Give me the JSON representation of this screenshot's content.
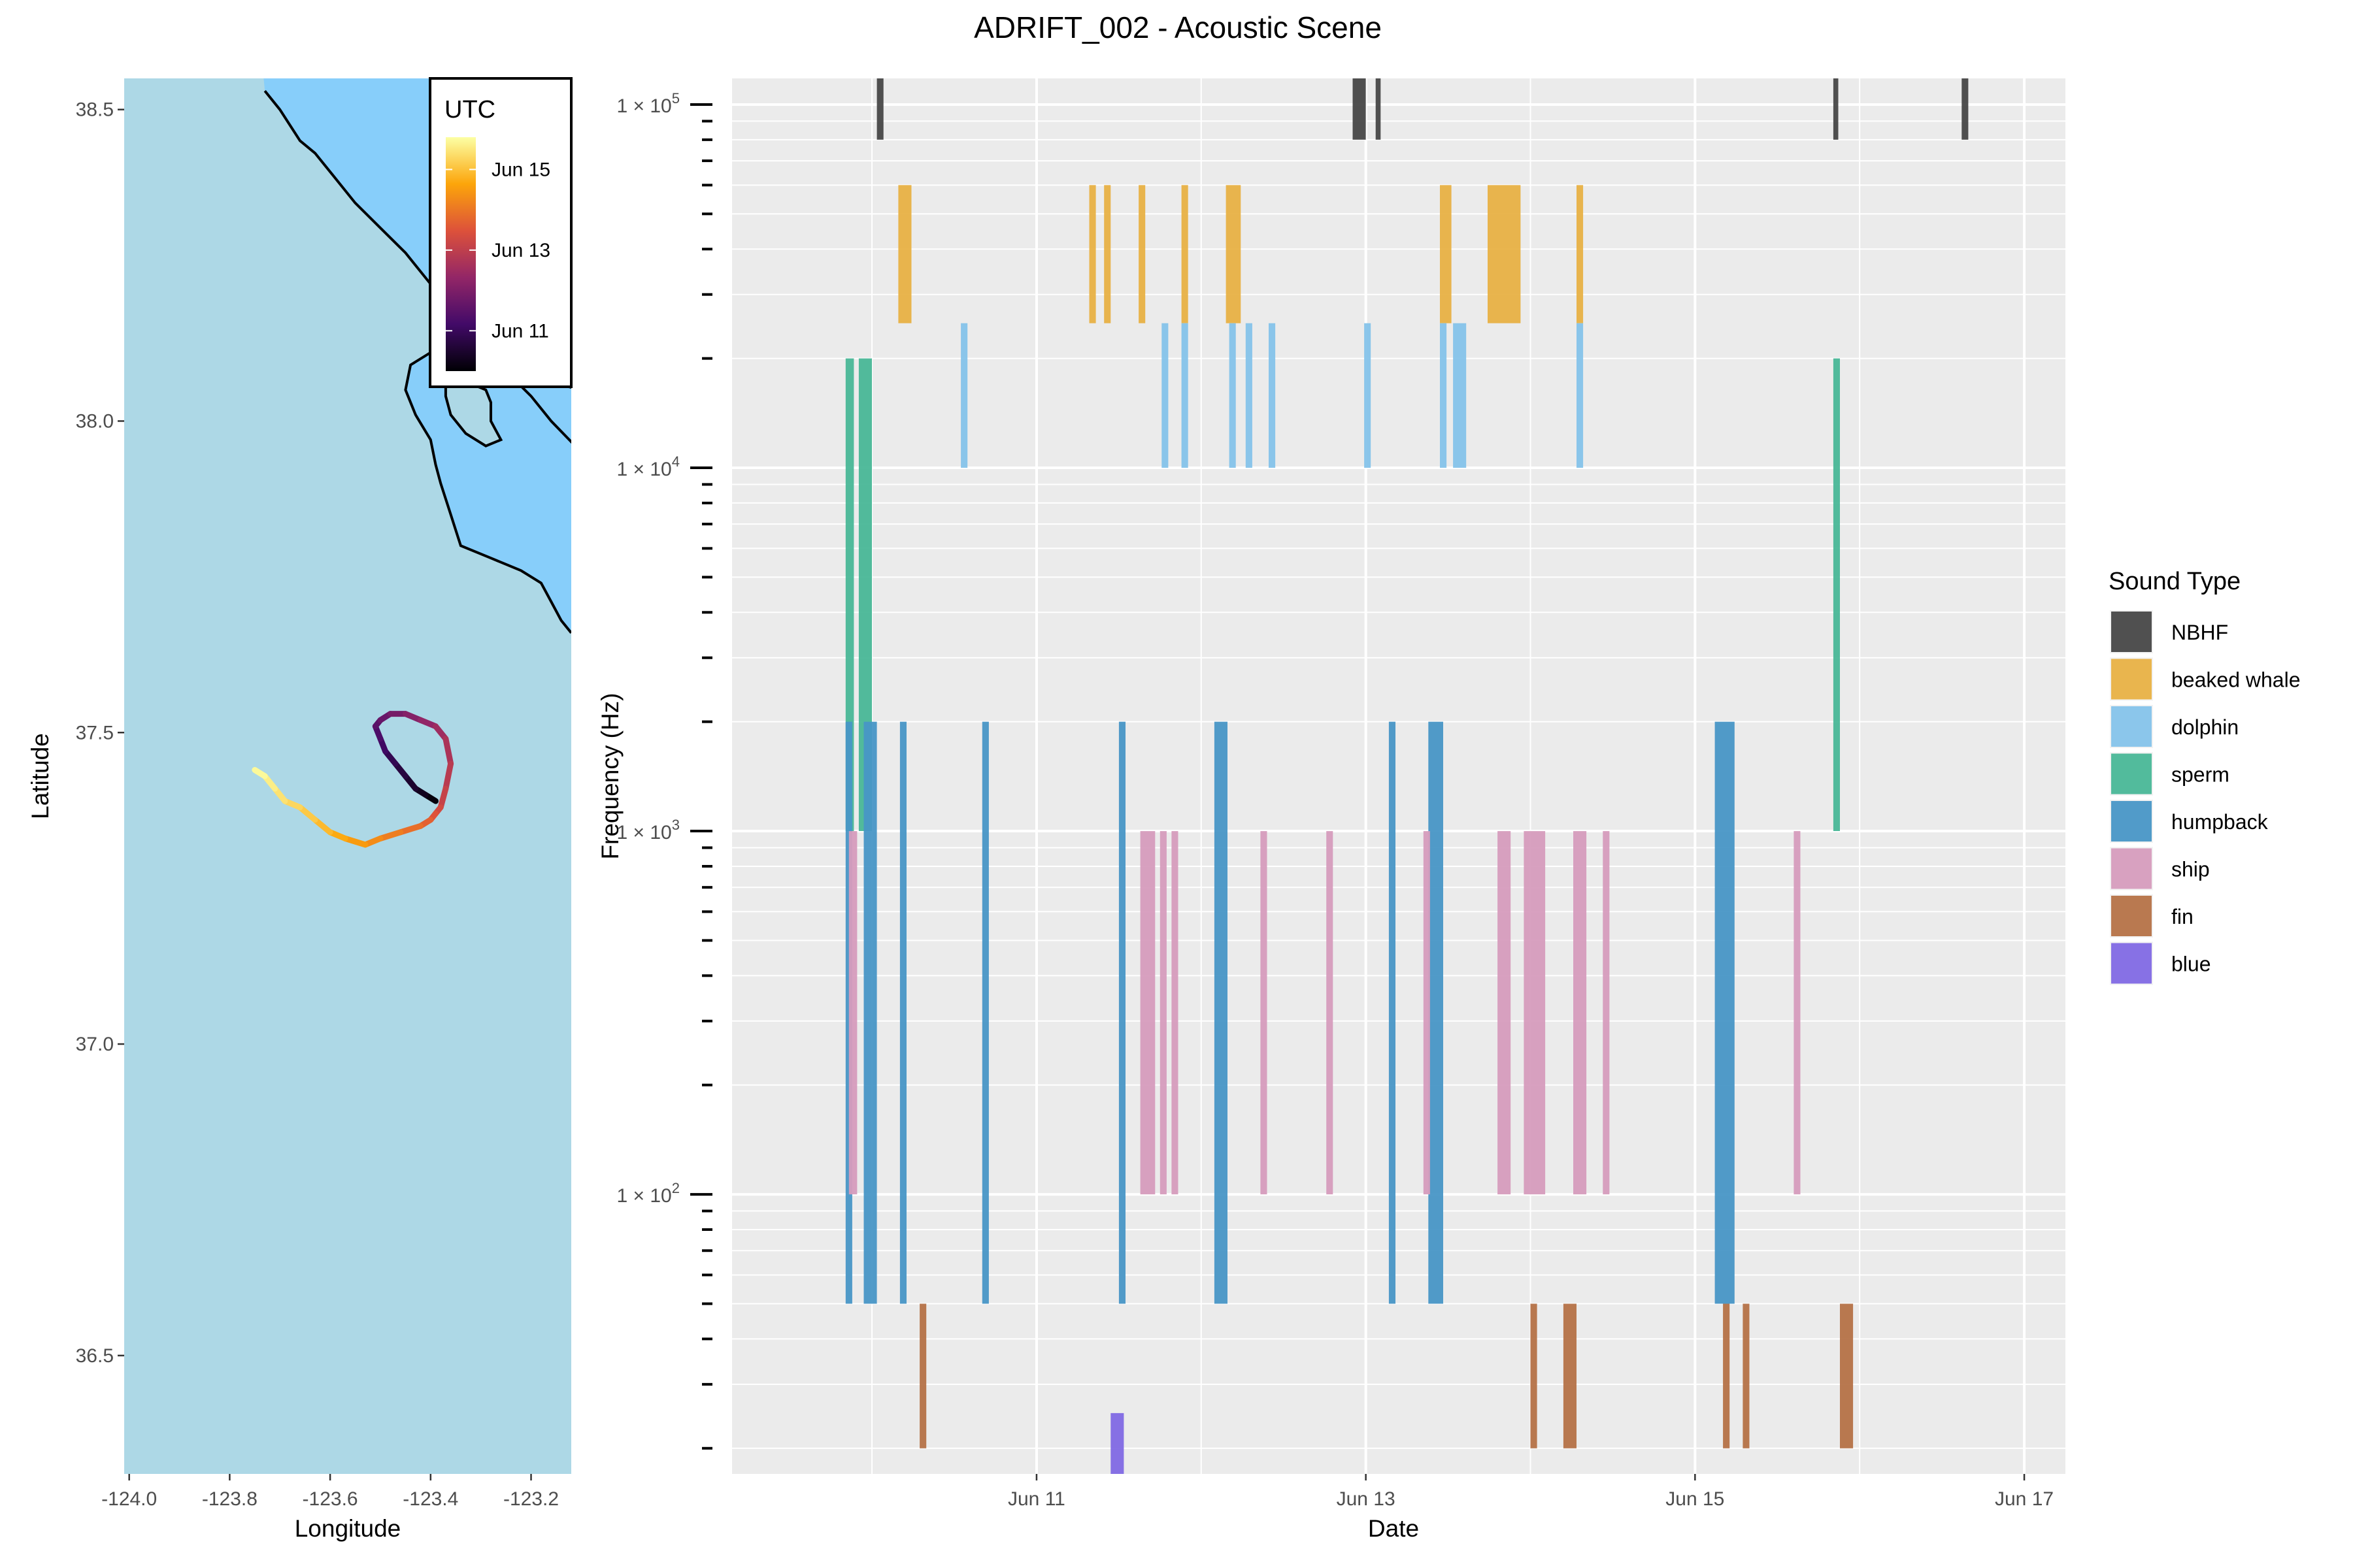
{
  "title": "ADRIFT_002 - Acoustic Scene",
  "chart_data": [
    {
      "type": "line",
      "panel": "map",
      "xlabel": "Longitude",
      "ylabel": "Latitude",
      "xlim": [
        -124.01,
        -123.12
      ],
      "ylim": [
        36.31,
        38.55
      ],
      "xticks": [
        -124.0,
        -123.8,
        -123.6,
        -123.4,
        -123.2
      ],
      "xtick_labels": [
        "-124.0",
        "-123.8",
        "-123.6",
        "-123.4",
        "-123.2"
      ],
      "yticks": [
        36.5,
        37.0,
        37.5,
        38.0,
        38.5
      ],
      "ytick_labels": [
        "36.5",
        "37.0",
        "37.5",
        "38.0",
        "38.5"
      ],
      "colors": {
        "ocean": "#add8e6",
        "land": "#87cefa",
        "coast": "#000000"
      },
      "colorbar": {
        "title": "UTC",
        "range": [
          10.0,
          15.8
        ],
        "ticks": [
          11,
          13,
          15
        ],
        "tick_labels": [
          "Jun 11",
          "Jun 13",
          "Jun 15"
        ],
        "palette": [
          "#000004",
          "#420a68",
          "#932667",
          "#dd513a",
          "#fca50a",
          "#fcffa4"
        ]
      },
      "coastline": {
        "mainland": [
          [
            -123.73,
            38.53
          ],
          [
            -123.7,
            38.5
          ],
          [
            -123.66,
            38.45
          ],
          [
            -123.63,
            38.43
          ],
          [
            -123.6,
            38.4
          ],
          [
            -123.55,
            38.35
          ],
          [
            -123.5,
            38.31
          ],
          [
            -123.45,
            38.27
          ],
          [
            -123.4,
            38.22
          ],
          [
            -123.35,
            38.18
          ],
          [
            -123.3,
            38.12
          ],
          [
            -123.25,
            38.08
          ],
          [
            -123.2,
            38.04
          ],
          [
            -123.16,
            38.0
          ],
          [
            -123.1,
            37.95
          ],
          [
            -123.05,
            37.88
          ]
        ],
        "bay_loop": [
          [
            -123.05,
            38.06
          ],
          [
            -123.1,
            38.05
          ],
          [
            -123.15,
            38.06
          ],
          [
            -123.2,
            38.08
          ],
          [
            -123.26,
            38.1
          ],
          [
            -123.33,
            38.11
          ],
          [
            -123.4,
            38.11
          ],
          [
            -123.44,
            38.09
          ],
          [
            -123.45,
            38.05
          ],
          [
            -123.43,
            38.01
          ],
          [
            -123.4,
            37.97
          ],
          [
            -123.39,
            37.93
          ],
          [
            -123.38,
            37.9
          ],
          [
            -123.36,
            37.85
          ],
          [
            -123.34,
            37.8
          ],
          [
            -123.28,
            37.78
          ],
          [
            -123.22,
            37.76
          ],
          [
            -123.18,
            37.74
          ],
          [
            -123.16,
            37.71
          ],
          [
            -123.14,
            37.68
          ],
          [
            -123.12,
            37.66
          ]
        ],
        "lagoon": [
          [
            -123.37,
            38.06
          ],
          [
            -123.32,
            38.06
          ],
          [
            -123.29,
            38.05
          ],
          [
            -123.28,
            38.03
          ],
          [
            -123.28,
            38.0
          ],
          [
            -123.26,
            37.97
          ],
          [
            -123.29,
            37.96
          ],
          [
            -123.33,
            37.98
          ],
          [
            -123.36,
            38.01
          ],
          [
            -123.37,
            38.04
          ],
          [
            -123.37,
            38.06
          ]
        ]
      },
      "track": {
        "lon": [
          -123.39,
          -123.41,
          -123.43,
          -123.45,
          -123.47,
          -123.49,
          -123.5,
          -123.51,
          -123.5,
          -123.48,
          -123.45,
          -123.42,
          -123.39,
          -123.37,
          -123.36,
          -123.37,
          -123.38,
          -123.39,
          -123.4,
          -123.42,
          -123.46,
          -123.5,
          -123.53,
          -123.57,
          -123.6,
          -123.63,
          -123.66,
          -123.69,
          -123.71,
          -123.73,
          -123.75
        ],
        "lat": [
          37.39,
          37.4,
          37.41,
          37.43,
          37.45,
          37.47,
          37.49,
          37.51,
          37.52,
          37.53,
          37.53,
          37.52,
          37.51,
          37.49,
          37.45,
          37.41,
          37.38,
          37.37,
          37.36,
          37.35,
          37.34,
          37.33,
          37.32,
          37.33,
          37.34,
          37.36,
          37.38,
          37.39,
          37.41,
          37.43,
          37.44
        ],
        "utc_day": [
          10.0,
          10.2,
          10.4,
          10.6,
          10.8,
          11.0,
          11.2,
          11.4,
          11.6,
          11.8,
          12.0,
          12.2,
          12.4,
          12.6,
          12.8,
          13.0,
          13.2,
          13.4,
          13.6,
          13.8,
          14.0,
          14.2,
          14.4,
          14.6,
          14.8,
          15.0,
          15.2,
          15.35,
          15.5,
          15.65,
          15.8
        ]
      }
    },
    {
      "type": "bar",
      "panel": "acoustic-scene",
      "xlabel": "Date",
      "ylabel": "Frequency (Hz)",
      "y_scale": "log",
      "xlim": [
        9.15,
        17.25
      ],
      "ylim": [
        17,
        118000
      ],
      "xticks": [
        11,
        13,
        15,
        17
      ],
      "xtick_labels": [
        "Jun 11",
        "Jun 13",
        "Jun 15",
        "Jun 17"
      ],
      "yticks": [
        100,
        1000,
        10000,
        100000
      ],
      "ytick_labels": [
        "1 × 10",
        "1 × 10",
        "1 × 10",
        "1 × 10"
      ],
      "ytick_exponents": [
        "2",
        "3",
        "4",
        "5"
      ],
      "legend": {
        "title": "Sound Type",
        "position": "right"
      },
      "series": [
        {
          "name": "NBHF",
          "color": "#474747",
          "bands": [
            {
              "f_lo": 80000,
              "f_hi": 130000,
              "intervals": [
                [
                  10.03,
                  10.07
                ],
                [
                  12.92,
                  13.0
                ],
                [
                  13.06,
                  13.09
                ],
                [
                  15.84,
                  15.87
                ],
                [
                  16.62,
                  16.66
                ]
              ]
            }
          ]
        },
        {
          "name": "beaked whale",
          "color": "#e8b144",
          "bands": [
            {
              "f_lo": 25000,
              "f_hi": 60000,
              "intervals": [
                [
                  10.16,
                  10.24
                ],
                [
                  11.32,
                  11.36
                ],
                [
                  11.41,
                  11.45
                ],
                [
                  11.62,
                  11.66
                ],
                [
                  11.88,
                  11.92
                ],
                [
                  12.15,
                  12.24
                ],
                [
                  13.45,
                  13.52
                ],
                [
                  13.74,
                  13.94
                ],
                [
                  14.28,
                  14.32
                ]
              ]
            }
          ]
        },
        {
          "name": "dolphin",
          "color": "#85c3ea",
          "bands": [
            {
              "f_lo": 10000,
              "f_hi": 25000,
              "intervals": [
                [
                  10.54,
                  10.58
                ],
                [
                  11.76,
                  11.8
                ],
                [
                  11.88,
                  11.92
                ],
                [
                  12.17,
                  12.21
                ],
                [
                  12.27,
                  12.31
                ],
                [
                  12.41,
                  12.45
                ],
                [
                  12.99,
                  13.03
                ],
                [
                  13.45,
                  13.49
                ],
                [
                  13.53,
                  13.61
                ],
                [
                  14.28,
                  14.32
                ]
              ]
            }
          ]
        },
        {
          "name": "sperm",
          "color": "#49b797",
          "bands": [
            {
              "f_lo": 1000,
              "f_hi": 20000,
              "intervals": [
                [
                  9.84,
                  9.89
                ],
                [
                  9.92,
                  10.0
                ],
                [
                  15.84,
                  15.88
                ]
              ]
            }
          ]
        },
        {
          "name": "humpback",
          "color": "#4896c6",
          "bands": [
            {
              "f_lo": 50,
              "f_hi": 2000,
              "intervals": [
                [
                  9.84,
                  9.88
                ],
                [
                  9.95,
                  10.03
                ],
                [
                  10.17,
                  10.21
                ],
                [
                  10.67,
                  10.71
                ],
                [
                  11.5,
                  11.54
                ],
                [
                  12.08,
                  12.16
                ],
                [
                  13.14,
                  13.18
                ],
                [
                  13.38,
                  13.47
                ],
                [
                  15.12,
                  15.24
                ]
              ]
            }
          ]
        },
        {
          "name": "ship",
          "color": "#d69cbd",
          "bands": [
            {
              "f_lo": 100,
              "f_hi": 1000,
              "intervals": [
                [
                  9.86,
                  9.91
                ],
                [
                  11.63,
                  11.72
                ],
                [
                  11.75,
                  11.79
                ],
                [
                  11.82,
                  11.86
                ],
                [
                  12.36,
                  12.4
                ],
                [
                  12.76,
                  12.8
                ],
                [
                  13.35,
                  13.39
                ],
                [
                  13.8,
                  13.88
                ],
                [
                  13.96,
                  14.09
                ],
                [
                  14.26,
                  14.34
                ],
                [
                  14.44,
                  14.48
                ],
                [
                  15.6,
                  15.64
                ]
              ]
            }
          ]
        },
        {
          "name": "fin",
          "color": "#b57247",
          "bands": [
            {
              "f_lo": 20,
              "f_hi": 50,
              "intervals": [
                [
                  10.29,
                  10.33
                ],
                [
                  14.0,
                  14.04
                ],
                [
                  14.2,
                  14.28
                ],
                [
                  15.17,
                  15.21
                ],
                [
                  15.29,
                  15.33
                ],
                [
                  15.88,
                  15.96
                ]
              ]
            }
          ]
        },
        {
          "name": "blue",
          "color": "#8169e4",
          "bands": [
            {
              "f_lo": 17,
              "f_hi": 25,
              "intervals": [
                [
                  11.45,
                  11.53
                ]
              ]
            }
          ]
        }
      ]
    }
  ]
}
